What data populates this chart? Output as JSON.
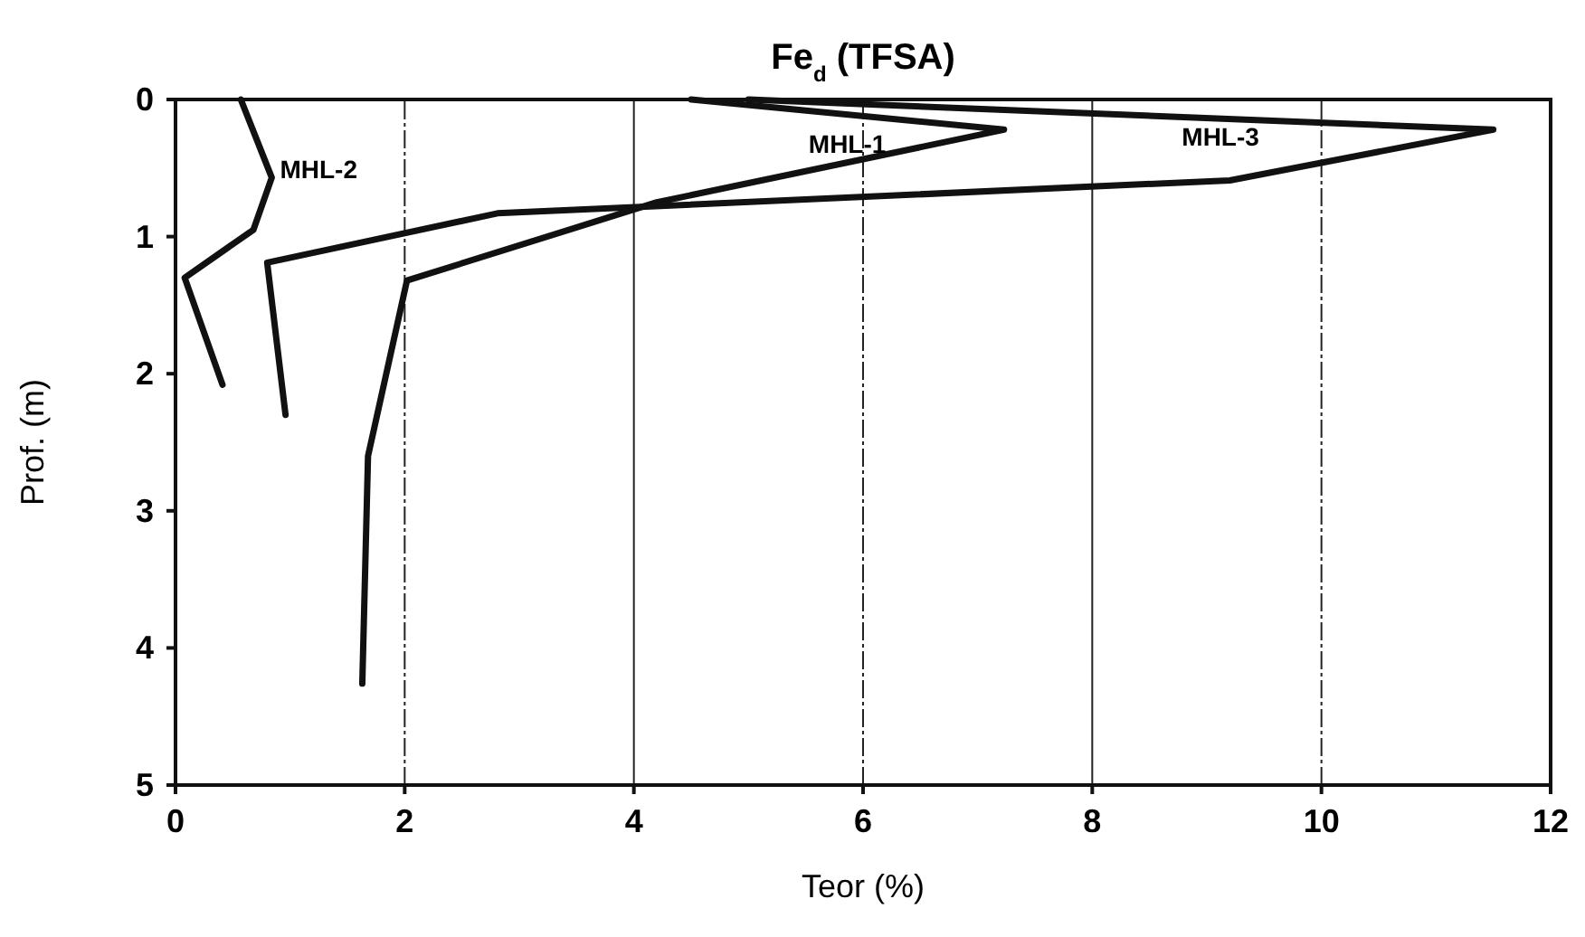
{
  "chart_data": {
    "type": "line",
    "title": "Fe$_{d}$ (TFSA)",
    "xlabel": "Teor (%)",
    "ylabel": "Prof. (m)",
    "xlim": [
      0,
      12
    ],
    "xticks": [
      0,
      2,
      4,
      6,
      8,
      10,
      12
    ],
    "ylim": [
      5,
      0
    ],
    "yticks": [
      0,
      1,
      2,
      3,
      4,
      5
    ],
    "grid": "x",
    "marker": "none",
    "line_style": "solid",
    "series": [
      {
        "name": "MHL-2",
        "color": "#111111",
        "x": [
          0.57,
          0.84,
          0.68,
          0.08,
          0.41
        ],
        "values": [
          0,
          0.57,
          0.95,
          1.3,
          2.08
        ]
      },
      {
        "name": "MHL-1",
        "color": "#111111",
        "x": [
          4.5,
          7.23,
          4.2,
          2.02,
          1.68,
          1.63
        ],
        "values": [
          0,
          0.22,
          0.75,
          1.32,
          2.6,
          4.26
        ]
      },
      {
        "name": "MHL-3",
        "color": "#111111",
        "x": [
          5.0,
          11.5,
          9.2,
          2.81,
          0.8,
          0.96
        ],
        "values": [
          0,
          0.22,
          0.59,
          0.83,
          1.19,
          2.3
        ]
      }
    ]
  }
}
